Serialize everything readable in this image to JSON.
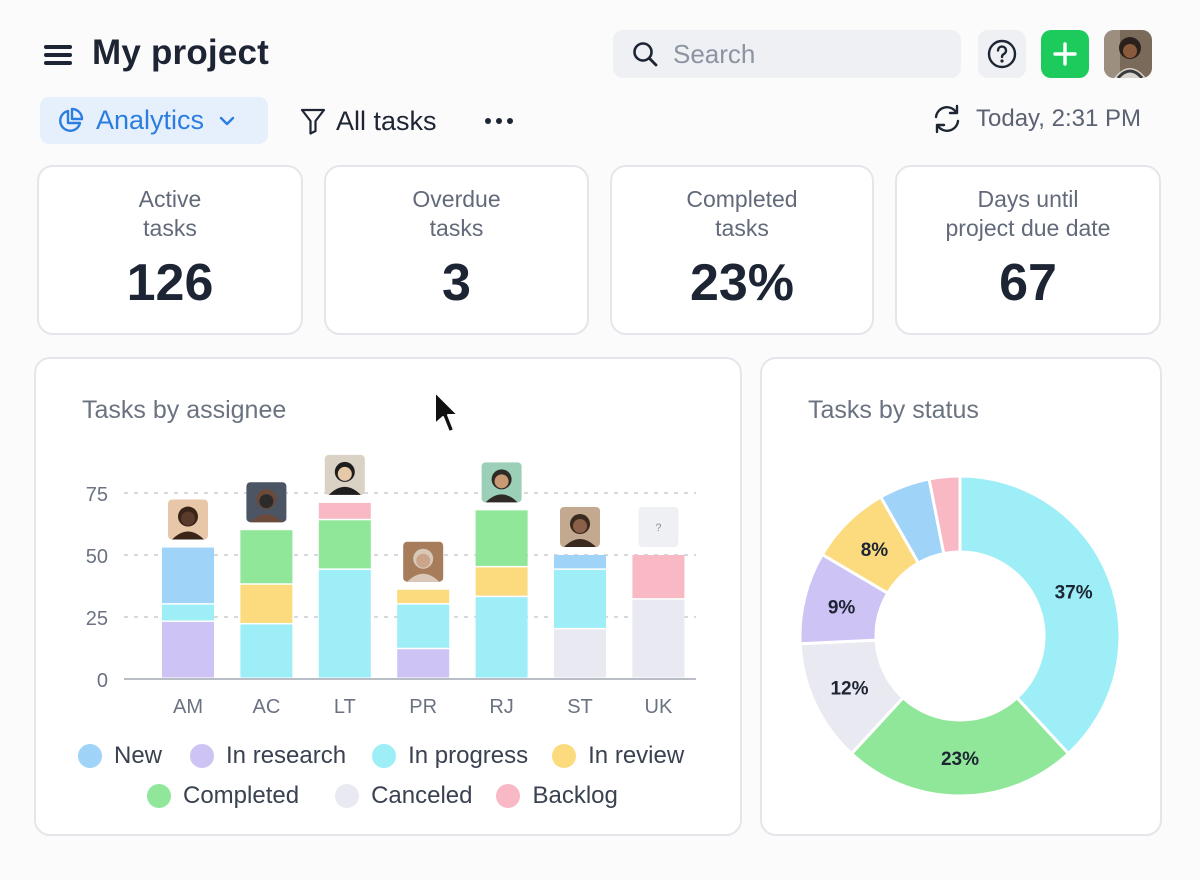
{
  "header": {
    "title": "My project",
    "search_placeholder": "Search"
  },
  "toolbar": {
    "analytics_label": "Analytics",
    "filter_label": "All tasks",
    "refresh_time": "Today, 2:31 PM"
  },
  "stats": [
    {
      "label_line1": "Active",
      "label_line2": "tasks",
      "value": "126"
    },
    {
      "label_line1": "Overdue",
      "label_line2": "tasks",
      "value": "3"
    },
    {
      "label_line1": "Completed",
      "label_line2": "tasks",
      "value": "23%"
    },
    {
      "label_line1": "Days until",
      "label_line2": "project due date",
      "value": "67"
    }
  ],
  "colors": {
    "new": "#9fd3f8",
    "in_research": "#cdc3f5",
    "in_progress": "#9eeef7",
    "in_review": "#fbdb7e",
    "completed": "#90e799",
    "canceled": "#e9eaf1",
    "backlog": "#f8b9c5",
    "accent": "#2b7de0",
    "add_button": "#1dcb5c"
  },
  "legend": [
    {
      "label": "New",
      "key": "new"
    },
    {
      "label": "In research",
      "key": "in_research"
    },
    {
      "label": "In progress",
      "key": "in_progress"
    },
    {
      "label": "In review",
      "key": "in_review"
    },
    {
      "label": "Completed",
      "key": "completed"
    },
    {
      "label": "Canceled",
      "key": "canceled"
    },
    {
      "label": "Backlog",
      "key": "backlog"
    }
  ],
  "chart_data": [
    {
      "type": "bar",
      "stacked": true,
      "title": "Tasks by assignee",
      "categories": [
        "AM",
        "AC",
        "LT",
        "PR",
        "RJ",
        "ST",
        "UK"
      ],
      "unknown_avatar_label": "?",
      "ylim": [
        0,
        75
      ],
      "yticks": [
        0,
        25,
        50,
        75
      ],
      "grid": true,
      "series": [
        {
          "name": "In research",
          "key": "in_research",
          "values": [
            23,
            0,
            0,
            12,
            0,
            0,
            0
          ]
        },
        {
          "name": "Canceled",
          "key": "canceled",
          "values": [
            0,
            0,
            0,
            0,
            0,
            20,
            32
          ]
        },
        {
          "name": "In progress",
          "key": "in_progress",
          "values": [
            7,
            22,
            44,
            18,
            33,
            24,
            0
          ]
        },
        {
          "name": "In review",
          "key": "in_review",
          "values": [
            0,
            16,
            0,
            6,
            12,
            0,
            0
          ]
        },
        {
          "name": "Completed",
          "key": "completed",
          "values": [
            0,
            22,
            20,
            0,
            23,
            0,
            0
          ]
        },
        {
          "name": "New",
          "key": "new",
          "values": [
            23,
            0,
            0,
            0,
            0,
            6,
            0
          ]
        },
        {
          "name": "Backlog",
          "key": "backlog",
          "values": [
            0,
            0,
            7,
            0,
            0,
            0,
            18
          ]
        }
      ]
    },
    {
      "type": "pie",
      "donut": true,
      "title": "Tasks by status",
      "slices": [
        {
          "name": "In progress",
          "key": "in_progress",
          "value": 37,
          "label": "37%"
        },
        {
          "name": "Completed",
          "key": "completed",
          "value": 23,
          "label": "23%"
        },
        {
          "name": "Canceled",
          "key": "canceled",
          "value": 12,
          "label": "12%"
        },
        {
          "name": "In research",
          "key": "in_research",
          "value": 9,
          "label": "9%"
        },
        {
          "name": "In review",
          "key": "in_review",
          "value": 8,
          "label": "8%"
        },
        {
          "name": "New",
          "key": "new",
          "value": 5,
          "label": ""
        },
        {
          "name": "Backlog",
          "key": "backlog",
          "value": 3,
          "label": ""
        }
      ]
    }
  ]
}
